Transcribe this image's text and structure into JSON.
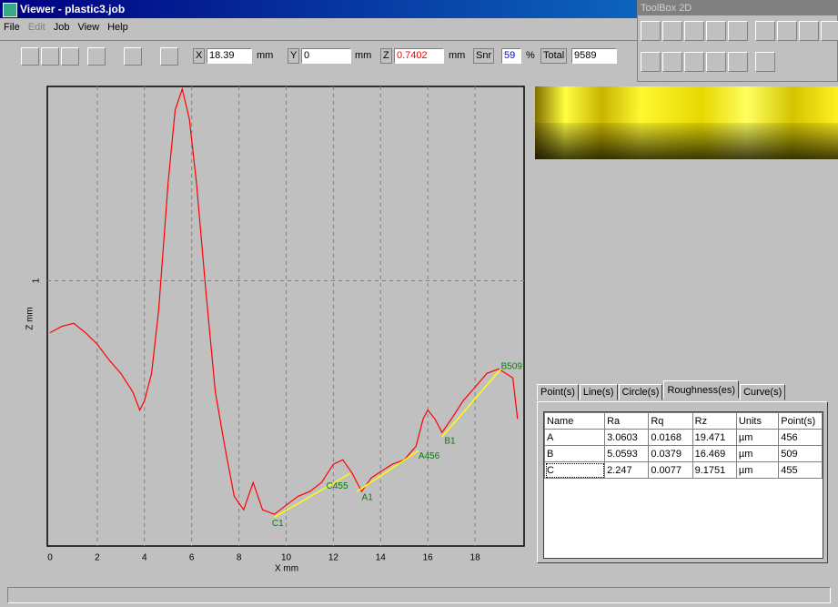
{
  "window": {
    "title": "Viewer - plastic3.job"
  },
  "menu": [
    "File",
    "Edit",
    "Job",
    "View",
    "Help"
  ],
  "toolbar": {
    "x_label": "X",
    "x_value": 18.39,
    "x_unit": "mm",
    "y_label": "Y",
    "y_value": 0,
    "y_unit": "mm",
    "z_label": "Z",
    "z_value": 0.7402,
    "z_unit": "mm",
    "snr_label": "Snr",
    "snr_value": 59,
    "snr_unit": "%",
    "total_label": "Total",
    "total_value": 9589
  },
  "toolbox": {
    "title": "ToolBox 2D"
  },
  "chart_data": {
    "type": "line",
    "xlabel": "X mm",
    "ylabel": "Z mm",
    "xlim": [
      0,
      20
    ],
    "ylim": [
      0.29,
      1.52
    ],
    "xticks": [
      0,
      2,
      4,
      6,
      8,
      10,
      12,
      14,
      16,
      18
    ],
    "yticks": [
      1
    ],
    "grid": true,
    "x": [
      0,
      0.5,
      1,
      1.5,
      2,
      2.5,
      3,
      3.5,
      3.8,
      4,
      4.3,
      4.6,
      5,
      5.3,
      5.6,
      5.9,
      6.2,
      6.6,
      7,
      7.4,
      7.8,
      8.2,
      8.6,
      9,
      9.5,
      10,
      10.5,
      11,
      11.5,
      12,
      12.4,
      12.8,
      13.2,
      13.6,
      14,
      14.5,
      15,
      15.5,
      15.8,
      16,
      16.3,
      16.6,
      17,
      17.5,
      18,
      18.5,
      19,
      19.3,
      19.6,
      19.8
    ],
    "series": [
      {
        "color": "#ff0000",
        "values": [
          0.861,
          0.878,
          0.886,
          0.861,
          0.83,
          0.788,
          0.752,
          0.703,
          0.654,
          0.679,
          0.752,
          0.922,
          1.263,
          1.457,
          1.513,
          1.433,
          1.263,
          0.971,
          0.703,
          0.557,
          0.423,
          0.387,
          0.46,
          0.387,
          0.375,
          0.399,
          0.423,
          0.436,
          0.46,
          0.509,
          0.521,
          0.484,
          0.436,
          0.472,
          0.489,
          0.509,
          0.521,
          0.557,
          0.63,
          0.654,
          0.63,
          0.594,
          0.63,
          0.679,
          0.715,
          0.752,
          0.764,
          0.752,
          0.74,
          0.63
        ]
      }
    ],
    "fits": [
      {
        "color": "#ffff00",
        "x": [
          9.5,
          12.7
        ],
        "values": [
          0.367,
          0.484
        ]
      },
      {
        "color": "#ffff00",
        "x": [
          13,
          15.6
        ],
        "values": [
          0.436,
          0.545
        ]
      },
      {
        "color": "#ffff00",
        "x": [
          16.6,
          19.1
        ],
        "values": [
          0.582,
          0.764
        ]
      }
    ],
    "annotations": [
      {
        "text": "C1",
        "x": 9.4,
        "y": 0.35
      },
      {
        "text": "C455",
        "x": 11.7,
        "y": 0.45
      },
      {
        "text": "A1",
        "x": 13.2,
        "y": 0.42
      },
      {
        "text": "A456",
        "x": 15.6,
        "y": 0.53
      },
      {
        "text": "B1",
        "x": 16.7,
        "y": 0.57
      },
      {
        "text": "B509",
        "x": 19.1,
        "y": 0.77
      }
    ]
  },
  "tabs": [
    "Point(s)",
    "Line(s)",
    "Circle(s)",
    "Roughness(es)",
    "Curve(s)"
  ],
  "table": {
    "header": [
      "Name",
      "Ra",
      "Rq",
      "Rz",
      "Units",
      "Point(s)"
    ],
    "rows": [
      [
        "A",
        3.0603,
        0.0168,
        19.471,
        "µm",
        456
      ],
      [
        "B",
        5.0593,
        0.0379,
        16.469,
        "µm",
        509
      ],
      [
        "C",
        2.247,
        0.0077,
        9.1751,
        "µm",
        455
      ]
    ]
  }
}
